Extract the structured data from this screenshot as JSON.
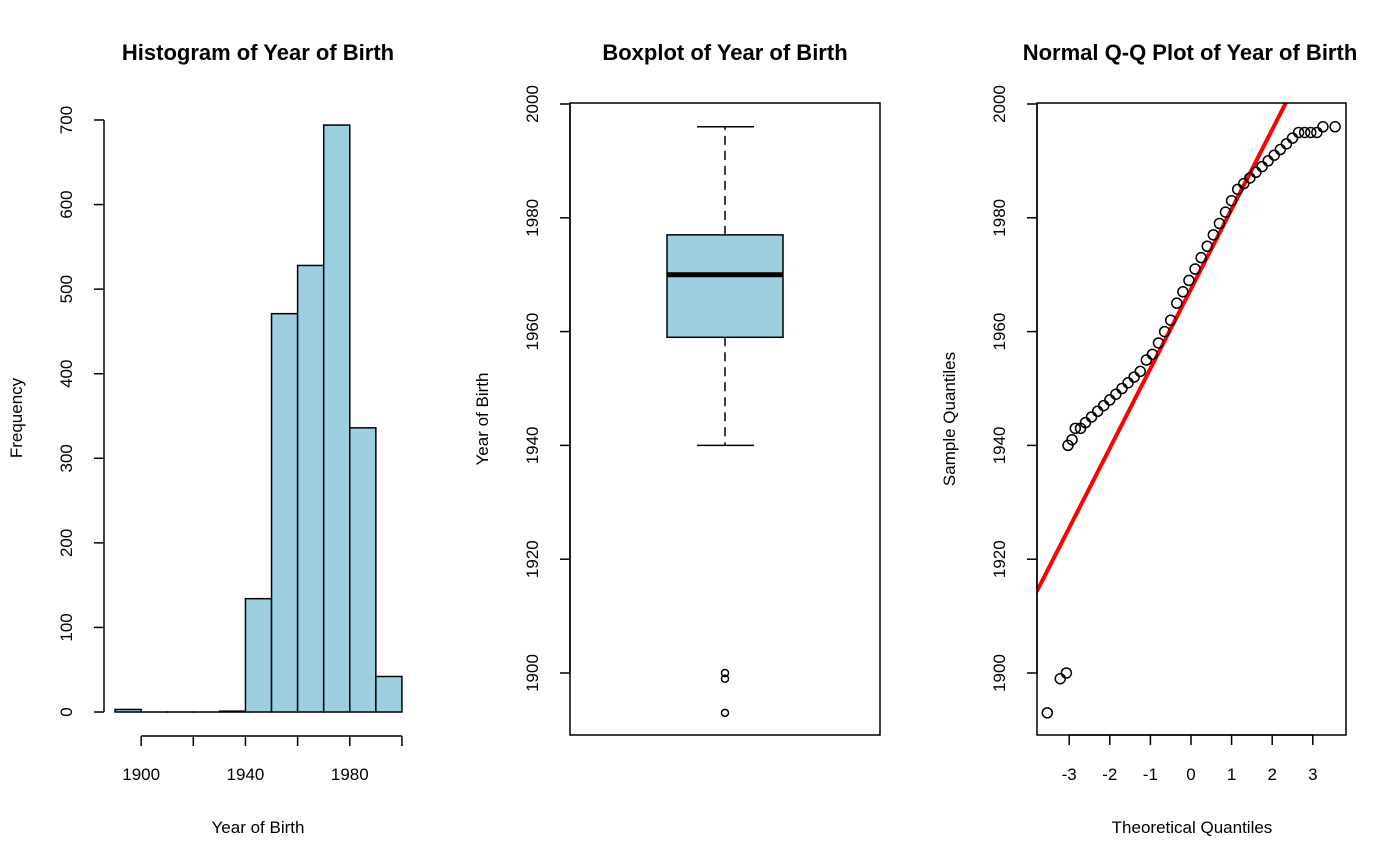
{
  "chart_data": [
    {
      "type": "bar",
      "subtype": "histogram",
      "title": "Histogram of Year of Birth",
      "xlabel": "Year of Birth",
      "ylabel": "Frequency",
      "bins": [
        {
          "start": 1890,
          "end": 1900,
          "count": 3
        },
        {
          "start": 1900,
          "end": 1910,
          "count": 0
        },
        {
          "start": 1910,
          "end": 1920,
          "count": 0
        },
        {
          "start": 1920,
          "end": 1930,
          "count": 0
        },
        {
          "start": 1930,
          "end": 1940,
          "count": 1
        },
        {
          "start": 1940,
          "end": 1950,
          "count": 134
        },
        {
          "start": 1950,
          "end": 1960,
          "count": 471
        },
        {
          "start": 1960,
          "end": 1970,
          "count": 528
        },
        {
          "start": 1970,
          "end": 1980,
          "count": 694
        },
        {
          "start": 1980,
          "end": 1990,
          "count": 336
        },
        {
          "start": 1990,
          "end": 2000,
          "count": 42
        }
      ],
      "xlim": [
        1890,
        2000
      ],
      "ylim": [
        0,
        700
      ],
      "xticks": [
        1900,
        1920,
        1940,
        1960,
        1980,
        2000
      ],
      "xtick_labels": [
        "1900",
        "",
        "1940",
        "",
        "1980",
        ""
      ],
      "yticks": [
        0,
        100,
        200,
        300,
        400,
        500,
        600,
        700
      ],
      "yticks_labels": [
        "0",
        "100",
        "200",
        "300",
        "400",
        "500",
        "600",
        "700"
      ],
      "bar_color": "#9ecfe1",
      "grid": false
    },
    {
      "type": "boxplot",
      "title": "Boxplot of Year of Birth",
      "ylabel": "Year of Birth",
      "ylim": [
        1890,
        2000
      ],
      "yticks": [
        1900,
        1920,
        1940,
        1960,
        1980,
        2000
      ],
      "yticks_labels": [
        "1900",
        "1920",
        "1940",
        "1960",
        "1980",
        "2000"
      ],
      "whisker_low": 1940,
      "q1": 1959,
      "median": 1970,
      "q3": 1977,
      "whisker_high": 1996,
      "outliers": [
        1893,
        1899,
        1900
      ],
      "box_color": "#9ecfe1",
      "grid": false
    },
    {
      "type": "scatter",
      "subtype": "qq",
      "title": "Normal Q-Q Plot of Year of Birth",
      "xlabel": "Theoretical Quantiles",
      "ylabel": "Sample Quantiles",
      "xlim": [
        -3.6,
        3.8
      ],
      "ylim": [
        1890,
        2000
      ],
      "xticks": [
        -3,
        -2,
        -1,
        0,
        1,
        2,
        3
      ],
      "xticks_labels": [
        "-3",
        "-2",
        "-1",
        "0",
        "1",
        "2",
        "3"
      ],
      "yticks": [
        1900,
        1920,
        1940,
        1960,
        1980,
        2000
      ],
      "yticks_labels": [
        "1900",
        "1920",
        "1940",
        "1960",
        "1980",
        "2000"
      ],
      "points": [
        [
          -3.54,
          1893
        ],
        [
          -3.22,
          1899
        ],
        [
          -3.07,
          1900
        ],
        [
          -3.03,
          1940
        ],
        [
          -2.93,
          1941
        ],
        [
          -2.85,
          1943
        ],
        [
          -2.72,
          1943
        ],
        [
          -2.6,
          1944
        ],
        [
          -2.45,
          1945
        ],
        [
          -2.3,
          1946
        ],
        [
          -2.15,
          1947
        ],
        [
          -2.0,
          1948
        ],
        [
          -1.85,
          1949
        ],
        [
          -1.7,
          1950
        ],
        [
          -1.55,
          1951
        ],
        [
          -1.4,
          1952
        ],
        [
          -1.25,
          1953
        ],
        [
          -1.1,
          1955
        ],
        [
          -0.95,
          1956
        ],
        [
          -0.8,
          1958
        ],
        [
          -0.65,
          1960
        ],
        [
          -0.5,
          1962
        ],
        [
          -0.35,
          1965
        ],
        [
          -0.2,
          1967
        ],
        [
          -0.05,
          1969
        ],
        [
          0.1,
          1971
        ],
        [
          0.25,
          1973
        ],
        [
          0.4,
          1975
        ],
        [
          0.55,
          1977
        ],
        [
          0.7,
          1979
        ],
        [
          0.85,
          1981
        ],
        [
          1.0,
          1983
        ],
        [
          1.15,
          1985
        ],
        [
          1.3,
          1986
        ],
        [
          1.45,
          1987
        ],
        [
          1.6,
          1988
        ],
        [
          1.75,
          1989
        ],
        [
          1.9,
          1990
        ],
        [
          2.05,
          1991
        ],
        [
          2.2,
          1992
        ],
        [
          2.35,
          1993
        ],
        [
          2.5,
          1994
        ],
        [
          2.65,
          1995
        ],
        [
          2.8,
          1995
        ],
        [
          2.95,
          1995
        ],
        [
          3.1,
          1995
        ],
        [
          3.25,
          1996
        ],
        [
          3.55,
          1996
        ]
      ],
      "qq_line": {
        "intercept": 1967.5,
        "slope": 14.0,
        "color": "#ff0000"
      },
      "grid": false
    }
  ]
}
